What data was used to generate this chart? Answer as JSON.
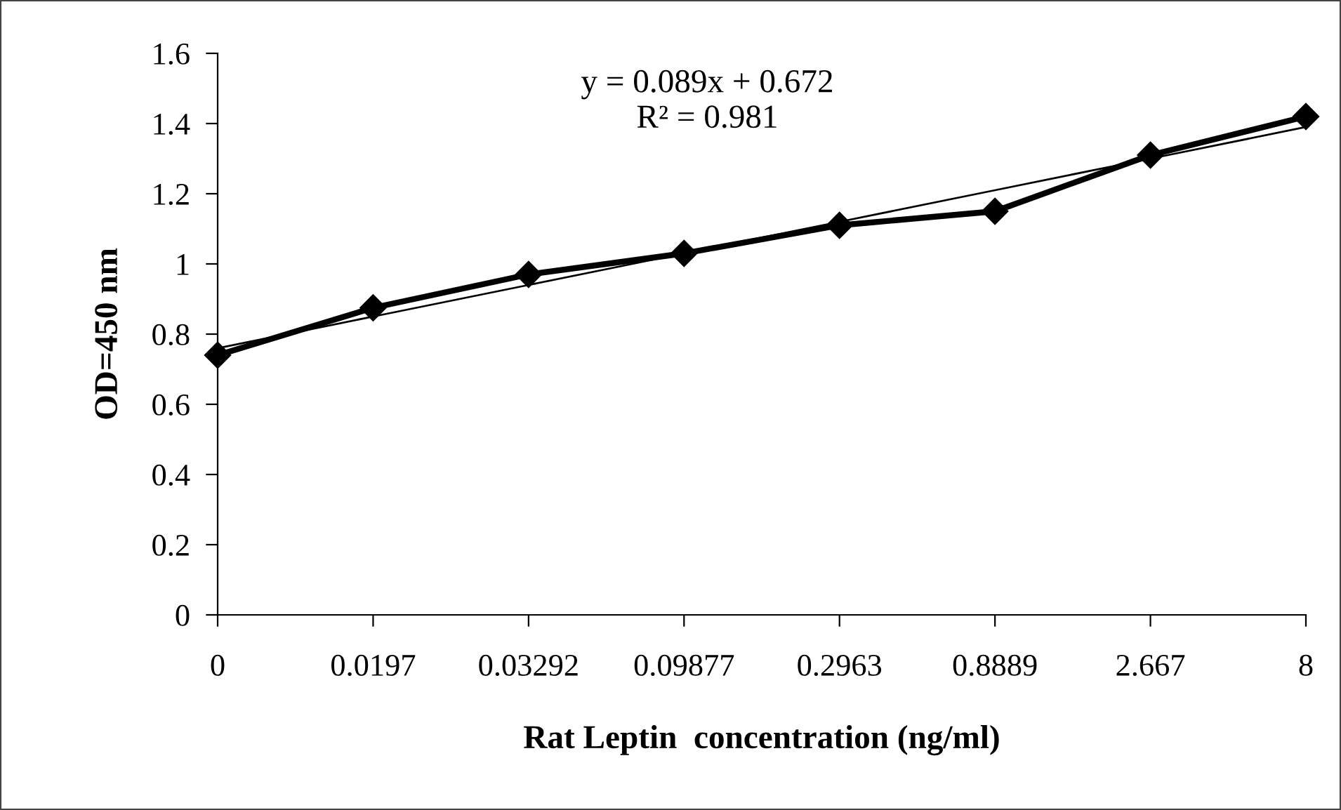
{
  "chart_data": {
    "type": "line",
    "xlabel": "Rat Leptin  concentration (ng/ml)",
    "ylabel": "OD=450 nm",
    "categories": [
      "0",
      "0.0197",
      "0.03292",
      "0.09877",
      "0.2963",
      "0.8889",
      "2.667",
      "8"
    ],
    "series": [
      {
        "color": "#000000",
        "values": [
          0.74,
          0.875,
          0.97,
          1.03,
          1.11,
          1.15,
          1.31,
          1.42
        ],
        "marker": "diamond"
      },
      {
        "type": "line",
        "color": "#000000",
        "values": [
          0.76,
          0.85,
          0.94,
          1.03,
          1.12,
          1.21,
          1.3,
          1.39
        ],
        "marker": "none"
      }
    ],
    "ylim": [
      0,
      1.6
    ],
    "yticks": [
      0,
      0.2,
      0.4,
      0.6,
      0.8,
      1,
      1.2,
      1.4,
      1.6
    ],
    "annotations": [
      "y = 0.089x + 0.672",
      "R² = 0.981"
    ],
    "grid": false,
    "legend": false
  }
}
